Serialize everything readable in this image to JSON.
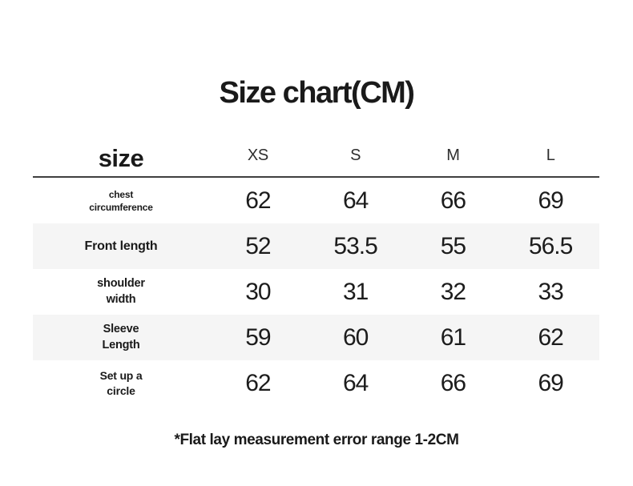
{
  "title": "Size chart(CM)",
  "header": {
    "corner_label": "size",
    "size_columns": [
      "XS",
      "S",
      "M",
      "L"
    ]
  },
  "rows": [
    {
      "label": "chest\ncircumference",
      "values": [
        "62",
        "64",
        "66",
        "69"
      ]
    },
    {
      "label": "Front length",
      "values": [
        "52",
        "53.5",
        "55",
        "56.5"
      ]
    },
    {
      "label": "shoulder\nwidth",
      "values": [
        "30",
        "31",
        "32",
        "33"
      ]
    },
    {
      "label": "Sleeve\nLength",
      "values": [
        "59",
        "60",
        "61",
        "62"
      ]
    },
    {
      "label": "Set up a\ncircle",
      "values": [
        "62",
        "64",
        "66",
        "69"
      ]
    }
  ],
  "footnote": "*Flat lay measurement error range 1-2CM",
  "colors": {
    "stripe": "#f5f5f5",
    "header_rule": "#3f3f3f",
    "text": "#1a1a1a"
  },
  "chart_data": {
    "type": "table",
    "title": "Size chart(CM)",
    "columns": [
      "size",
      "XS",
      "S",
      "M",
      "L"
    ],
    "rows": [
      [
        "chest circumference",
        62,
        64,
        66,
        69
      ],
      [
        "Front length",
        52,
        53.5,
        55,
        56.5
      ],
      [
        "shoulder width",
        30,
        31,
        32,
        33
      ],
      [
        "Sleeve Length",
        59,
        60,
        61,
        62
      ],
      [
        "Set up a circle",
        62,
        64,
        66,
        69
      ]
    ],
    "footnote": "*Flat lay measurement error range 1-2CM"
  }
}
